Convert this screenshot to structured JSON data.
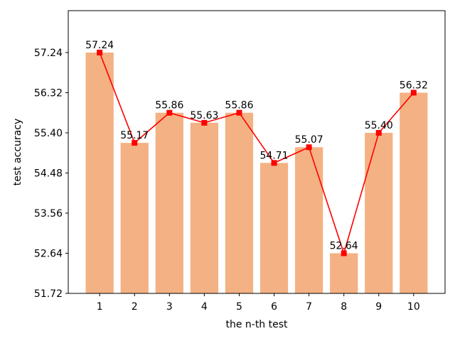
{
  "chart_data": {
    "type": "bar",
    "title": "",
    "xlabel": "the n-th test",
    "ylabel": "test accuracy",
    "categories": [
      "1",
      "2",
      "3",
      "4",
      "5",
      "6",
      "7",
      "8",
      "9",
      "10"
    ],
    "series": [
      {
        "values": [
          57.24,
          55.17,
          55.86,
          55.63,
          55.86,
          54.71,
          55.07,
          52.64,
          55.4,
          56.32
        ],
        "labels": [
          "57.24",
          "55.17",
          "55.86",
          "55.63",
          "55.86",
          "54.71",
          "55.07",
          "52.64",
          "55.40",
          "56.32"
        ]
      }
    ],
    "overlay_line": true,
    "yticks": [
      "51.72",
      "52.64",
      "53.56",
      "54.48",
      "55.40",
      "56.32",
      "57.24"
    ],
    "ylim": [
      51.72,
      58.2
    ],
    "grid": false,
    "legend": "none",
    "colors": {
      "bar": "#f4b183",
      "line": "#ff0000",
      "marker": "#ff0000"
    }
  }
}
